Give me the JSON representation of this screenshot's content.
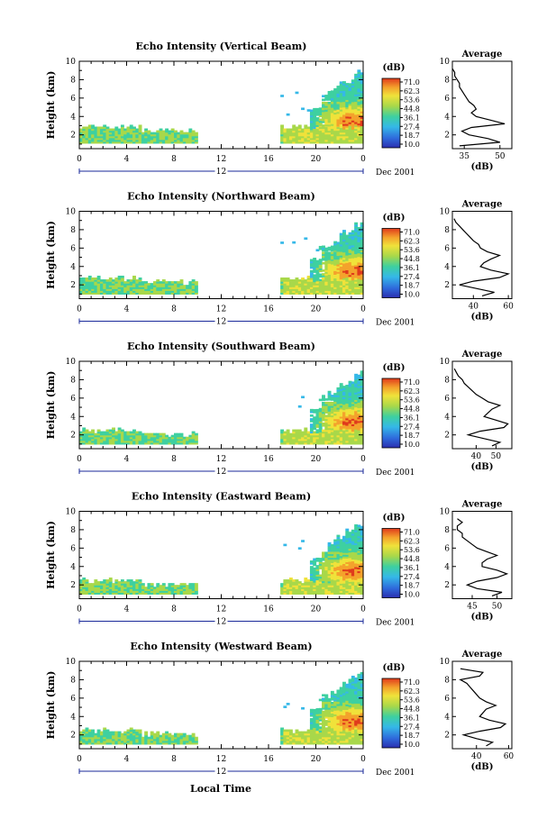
{
  "figure": {
    "x_axis_label": "Local Time",
    "date_label": "Dec 2001",
    "y_axis_label": "Height (km)",
    "colorbar_unit": "(dB)",
    "avg_title": "Average",
    "avg_xlabel": "(dB)"
  },
  "chart_data": [
    {
      "type": "heatmap",
      "title": "Echo Intensity (Vertical Beam)",
      "xlabel": "Local Time",
      "ylabel": "Height (km)",
      "x_ticks": [
        "0",
        "4",
        "8",
        "12",
        "16",
        "20",
        "0"
      ],
      "x_range": [
        0,
        24
      ],
      "y_ticks": [
        "2",
        "4",
        "6",
        "8",
        "10"
      ],
      "y_range": [
        0.5,
        10
      ],
      "colorbar_ticks": [
        "71.0",
        "62.3",
        "53.6",
        "44.8",
        "36.1",
        "27.4",
        "18.7",
        "10.0"
      ],
      "data_gap_hours": [
        10,
        17
      ],
      "low_layer_km": [
        1.1,
        2.8
      ],
      "storm_top_km": 9.1,
      "average_profile": {
        "x_ticks": [
          "35",
          "50"
        ],
        "x_range": [
          30,
          55
        ],
        "height_km": [
          0.8,
          1.2,
          1.6,
          2.0,
          2.4,
          2.8,
          3.2,
          3.6,
          4.0,
          4.4,
          4.8,
          5.2,
          5.6,
          6.0,
          6.4,
          6.8,
          7.2,
          7.6,
          8.0,
          8.4,
          8.8,
          9.2
        ],
        "db": [
          33,
          50,
          45,
          37,
          34,
          38,
          52,
          46,
          40,
          38,
          40,
          39,
          37,
          36,
          35,
          34,
          33,
          33,
          32,
          31,
          31,
          30
        ]
      }
    },
    {
      "type": "heatmap",
      "title": "Echo Intensity (Northward Beam)",
      "xlabel": "Local Time",
      "ylabel": "Height (km)",
      "x_ticks": [
        "0",
        "4",
        "8",
        "12",
        "16",
        "20",
        "0"
      ],
      "x_range": [
        0,
        24
      ],
      "y_ticks": [
        "2",
        "4",
        "6",
        "8",
        "10"
      ],
      "y_range": [
        0.5,
        10
      ],
      "colorbar_ticks": [
        "71.0",
        "62.3",
        "53.6",
        "44.8",
        "36.1",
        "27.4",
        "18.7",
        "10.0"
      ],
      "data_gap_hours": [
        10,
        17
      ],
      "low_layer_km": [
        1.0,
        2.6
      ],
      "storm_top_km": 9.0,
      "average_profile": {
        "x_ticks": [
          "40",
          "60"
        ],
        "x_range": [
          28,
          62
        ],
        "height_km": [
          0.8,
          1.2,
          1.6,
          2.0,
          2.4,
          2.8,
          3.2,
          3.6,
          4.0,
          4.4,
          4.8,
          5.2,
          5.6,
          6.0,
          6.4,
          6.8,
          7.2,
          7.6,
          8.0,
          8.4,
          8.8,
          9.2
        ],
        "db": [
          45,
          52,
          42,
          32,
          40,
          55,
          60,
          50,
          44,
          46,
          50,
          55,
          48,
          44,
          43,
          40,
          38,
          36,
          34,
          32,
          30,
          29
        ]
      }
    },
    {
      "type": "heatmap",
      "title": "Echo Intensity (Southward Beam)",
      "xlabel": "Local Time",
      "ylabel": "Height (km)",
      "x_ticks": [
        "0",
        "4",
        "8",
        "12",
        "16",
        "20",
        "0"
      ],
      "x_range": [
        0,
        24
      ],
      "y_ticks": [
        "2",
        "4",
        "6",
        "8",
        "10"
      ],
      "y_range": [
        0.5,
        10
      ],
      "colorbar_ticks": [
        "71.0",
        "62.3",
        "53.6",
        "44.8",
        "36.1",
        "27.4",
        "18.7",
        "10.0"
      ],
      "data_gap_hours": [
        10,
        17
      ],
      "low_layer_km": [
        1.0,
        2.4
      ],
      "storm_top_km": 9.0,
      "average_profile": {
        "x_ticks": [
          "40",
          "50"
        ],
        "x_range": [
          28,
          58
        ],
        "height_km": [
          0.8,
          1.2,
          1.6,
          2.0,
          2.4,
          2.8,
          3.2,
          3.6,
          4.0,
          4.4,
          4.8,
          5.2,
          5.6,
          6.0,
          6.4,
          6.8,
          7.2,
          7.6,
          8.0,
          8.4,
          8.8,
          9.2
        ],
        "db": [
          48,
          52,
          44,
          36,
          42,
          54,
          56,
          50,
          44,
          46,
          48,
          52,
          46,
          43,
          40,
          38,
          36,
          34,
          33,
          31,
          30,
          29
        ]
      }
    },
    {
      "type": "heatmap",
      "title": "Echo Intensity (Eastward Beam)",
      "xlabel": "Local Time",
      "ylabel": "Height (km)",
      "x_ticks": [
        "0",
        "4",
        "8",
        "12",
        "16",
        "20",
        "0"
      ],
      "x_range": [
        0,
        24
      ],
      "y_ticks": [
        "2",
        "4",
        "6",
        "8",
        "10"
      ],
      "y_range": [
        0.5,
        10
      ],
      "colorbar_ticks": [
        "71.0",
        "62.3",
        "53.6",
        "44.8",
        "36.1",
        "27.4",
        "18.7",
        "10.0"
      ],
      "data_gap_hours": [
        10,
        17
      ],
      "low_layer_km": [
        1.0,
        2.4
      ],
      "storm_top_km": 9.0,
      "average_profile": {
        "x_ticks": [
          "45",
          "50"
        ],
        "x_range": [
          41,
          53
        ],
        "height_km": [
          0.8,
          1.2,
          1.6,
          2.0,
          2.4,
          2.8,
          3.2,
          3.6,
          4.0,
          4.4,
          4.8,
          5.2,
          5.6,
          6.0,
          6.4,
          6.8,
          7.2,
          7.6,
          8.0,
          8.4,
          8.8,
          9.2
        ],
        "db": [
          49,
          51,
          46,
          44,
          46,
          50,
          52,
          50,
          47,
          47,
          48,
          50,
          48,
          46,
          45,
          44,
          43,
          43,
          42,
          42,
          43,
          42
        ]
      }
    },
    {
      "type": "heatmap",
      "title": "Echo Intensity (Westward Beam)",
      "xlabel": "Local Time",
      "ylabel": "Height (km)",
      "x_ticks": [
        "0",
        "4",
        "8",
        "12",
        "16",
        "20",
        "0"
      ],
      "x_range": [
        0,
        24
      ],
      "y_ticks": [
        "2",
        "4",
        "6",
        "8",
        "10"
      ],
      "y_range": [
        0.5,
        10
      ],
      "colorbar_ticks": [
        "71.0",
        "62.3",
        "53.6",
        "44.8",
        "36.1",
        "27.4",
        "18.7",
        "10.0"
      ],
      "data_gap_hours": [
        10,
        17
      ],
      "low_layer_km": [
        1.0,
        2.4
      ],
      "storm_top_km": 9.0,
      "average_profile": {
        "x_ticks": [
          "40",
          "60"
        ],
        "x_range": [
          25,
          62
        ],
        "height_km": [
          0.8,
          1.2,
          1.6,
          2.0,
          2.4,
          2.8,
          3.2,
          3.6,
          4.0,
          4.4,
          4.8,
          5.2,
          5.6,
          6.0,
          6.4,
          6.8,
          7.2,
          7.6,
          8.0,
          8.4,
          8.8,
          9.2
        ],
        "db": [
          46,
          50,
          40,
          32,
          42,
          55,
          58,
          48,
          42,
          44,
          46,
          52,
          46,
          42,
          40,
          38,
          36,
          34,
          30,
          42,
          44,
          30
        ]
      }
    }
  ],
  "colors": {
    "colorbar_stops": [
      "#2b2fb0",
      "#2f6bdc",
      "#35b8e8",
      "#3ed0a0",
      "#a8d84a",
      "#f0e23a",
      "#f4a22c",
      "#e03a1c"
    ]
  }
}
